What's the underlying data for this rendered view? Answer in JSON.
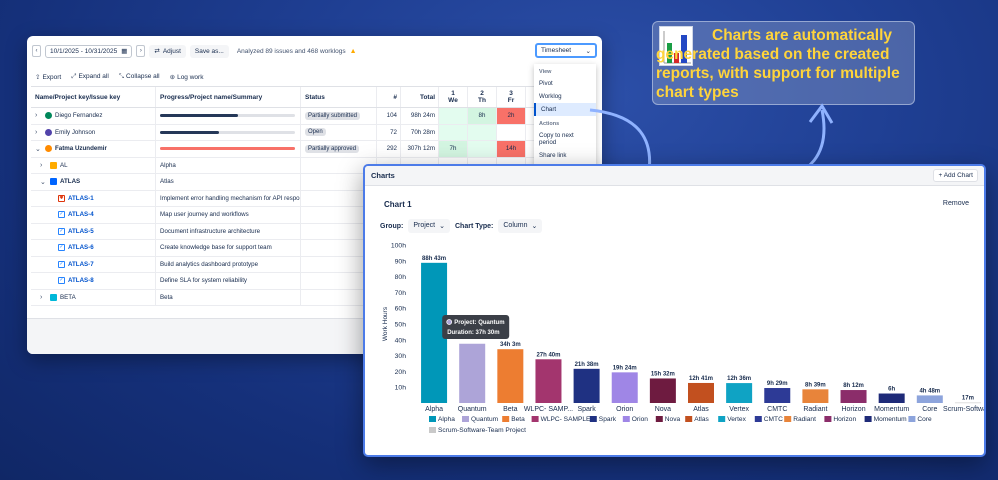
{
  "timesheet": {
    "date_range": "10/1/2025 - 10/31/2025",
    "adjust_label": "Adjust",
    "save_as_label": "Save as...",
    "analyzed_text": "Analyzed 89 issues and 468 worklogs",
    "view_select": "Timesheet",
    "actions": {
      "export": "Export",
      "expand_all": "Expand all",
      "collapse_all": "Collapse all",
      "log_work": "Log work"
    },
    "headers": {
      "key": "Name/Project key/Issue key",
      "summary": "Progress/Project name/Summary",
      "status": "Status",
      "num": "#",
      "total": "Total",
      "days": [
        {
          "n": "1",
          "d": "We"
        },
        {
          "n": "2",
          "d": "Th"
        },
        {
          "n": "3",
          "d": "Fr"
        }
      ]
    },
    "rows": [
      {
        "key": "Diego Fernandez",
        "type": "user",
        "avatar": "#00875a",
        "progress": 0.58,
        "barcolor": "#253858",
        "status": "Partially submitted",
        "num": "104",
        "total": "98h 24m",
        "d1": "",
        "d2": "8h",
        "d3": "2h"
      },
      {
        "key": "Emily Johnson",
        "type": "user",
        "avatar": "#5243aa",
        "progress": 0.44,
        "barcolor": "#253858",
        "status": "Open",
        "num": "72",
        "total": "70h 28m",
        "d1": "",
        "d2": "",
        "d3": ""
      },
      {
        "key": "Fatma Uzundemir",
        "type": "user-bold",
        "avatar": "#ff8b00",
        "progress": 1.0,
        "barcolor": "#f87168",
        "status": "Partially approved",
        "num": "292",
        "total": "307h 12m",
        "d1": "7h",
        "d2": "",
        "d3": "14h"
      },
      {
        "key": "AL",
        "type": "project",
        "icon": "#ffab00",
        "summary": "Alpha"
      },
      {
        "key": "ATLAS",
        "type": "project-open",
        "icon": "#0065ff",
        "summary": "Atlas"
      },
      {
        "key": "ATLAS-1",
        "type": "issue-bug",
        "summary": "Implement error handling mechanism for API respo..."
      },
      {
        "key": "ATLAS-4",
        "type": "issue",
        "summary": "Map user journey and workflows"
      },
      {
        "key": "ATLAS-5",
        "type": "issue",
        "summary": "Document infrastructure architecture"
      },
      {
        "key": "ATLAS-6",
        "type": "issue",
        "summary": "Create knowledge base for support team"
      },
      {
        "key": "ATLAS-7",
        "type": "issue",
        "summary": "Build analytics dashboard prototype"
      },
      {
        "key": "ATLAS-8",
        "type": "issue",
        "summary": "Define SLA for system reliability"
      },
      {
        "key": "BETA",
        "type": "project",
        "icon": "#00b8d9",
        "summary": "Beta"
      }
    ],
    "menu": {
      "view_group": "View",
      "view_items": [
        "Pivot",
        "Worklog",
        "Chart"
      ],
      "selected": "Chart",
      "actions_group": "Actions",
      "action_items": [
        "Copy to next period",
        "Share link"
      ]
    }
  },
  "charts_panel": {
    "header": "Charts",
    "add_chart": "Add Chart",
    "chart_title": "Chart 1",
    "remove": "Remove",
    "group_label": "Group:",
    "group_value": "Project",
    "type_label": "Chart Type:",
    "type_value": "Column",
    "tooltip": {
      "line1": "Project: Quantum",
      "line2": "Duration: 37h 30m"
    }
  },
  "chart_data": {
    "type": "bar",
    "ylabel": "Work Hours",
    "ylim": [
      0,
      100
    ],
    "ytick_labels": [
      "10h",
      "20h",
      "30h",
      "40h",
      "50h",
      "60h",
      "70h",
      "80h",
      "90h",
      "100h"
    ],
    "categories": [
      "Alpha",
      "Quantum",
      "Beta",
      "WLPC- SAMP...",
      "Spark",
      "Orion",
      "Nova",
      "Atlas",
      "Vertex",
      "CMTC",
      "Radiant",
      "Horizon",
      "Momentum",
      "Core",
      "Scrum-Softwa..."
    ],
    "values": [
      88.72,
      37.5,
      34.05,
      27.67,
      21.63,
      19.4,
      15.53,
      12.68,
      12.6,
      9.48,
      8.65,
      8.2,
      6.0,
      4.8,
      0.28
    ],
    "data_labels": [
      "88h 43m",
      "",
      "34h 3m",
      "27h 40m",
      "21h 38m",
      "19h 24m",
      "15h 32m",
      "12h 41m",
      "12h 36m",
      "9h 29m",
      "8h 39m",
      "8h 12m",
      "6h",
      "4h 48m",
      "17m"
    ],
    "colors": [
      "#0097b8",
      "#ada4d8",
      "#ed7d31",
      "#a3356e",
      "#1f3182",
      "#9f86e6",
      "#6e1b40",
      "#c2501f",
      "#0fa3c4",
      "#2d3a96",
      "#e8843a",
      "#8b2d6a",
      "#1e2a78",
      "#8da4dc",
      "#c9c9c9"
    ],
    "legend": [
      "Alpha",
      "Quantum",
      "Beta",
      "WLPC- SAMPLE",
      "Spark",
      "Orion",
      "Nova",
      "Atlas",
      "Vertex",
      "CMTC",
      "Radiant",
      "Horizon",
      "Momentum",
      "Core",
      "Scrum-Software-Team Project"
    ]
  },
  "callout": {
    "text": "Charts are automatically generated based on the created reports, with support for multiple chart types"
  }
}
